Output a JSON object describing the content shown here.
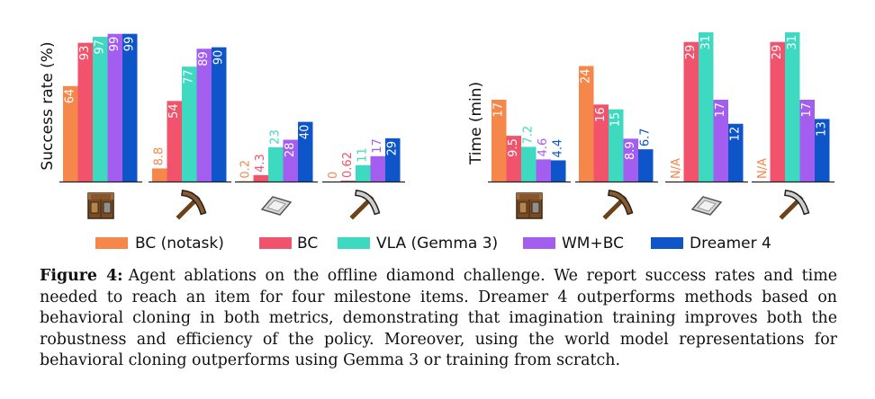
{
  "chart_data": {
    "type": "bar",
    "legend": {
      "placement": "bottom",
      "entries": [
        "BC (notask)",
        "BC",
        "VLA (Gemma 3)",
        "WM+BC",
        "Dreamer 4"
      ]
    },
    "colors": [
      "#f5874b",
      "#f0536b",
      "#3dd9c1",
      "#a35ef0",
      "#0d55c9"
    ],
    "panels": [
      {
        "ylabel": "Success rate (%)",
        "ylim": [
          0,
          100
        ],
        "categories": [
          "crafting-table",
          "wooden-pickaxe",
          "iron-ingot",
          "iron-pickaxe"
        ],
        "series": [
          {
            "name": "BC (notask)",
            "values": [
              64,
              8.8,
              0.2,
              0
            ],
            "labels": [
              "64",
              "8.8",
              "0.2",
              "0"
            ]
          },
          {
            "name": "BC",
            "values": [
              93,
              54,
              4.3,
              0.62
            ],
            "labels": [
              "93",
              "54",
              "4.3",
              "0.62"
            ]
          },
          {
            "name": "VLA (Gemma 3)",
            "values": [
              97,
              77,
              23,
              11
            ],
            "labels": [
              "97",
              "77",
              "23",
              "11"
            ]
          },
          {
            "name": "WM+BC",
            "values": [
              99,
              89,
              28,
              17
            ],
            "labels": [
              "99",
              "89",
              "28",
              "17"
            ]
          },
          {
            "name": "Dreamer 4",
            "values": [
              99,
              90,
              40,
              29
            ],
            "labels": [
              "99",
              "90",
              "40",
              "29"
            ]
          }
        ]
      },
      {
        "ylabel": "Time (min)",
        "ylim": [
          0,
          31
        ],
        "categories": [
          "crafting-table",
          "wooden-pickaxe",
          "iron-ingot",
          "iron-pickaxe"
        ],
        "series": [
          {
            "name": "BC (notask)",
            "values": [
              17,
              24,
              null,
              null
            ],
            "labels": [
              "17",
              "24",
              "N/A",
              "N/A"
            ]
          },
          {
            "name": "BC",
            "values": [
              9.5,
              16,
              29,
              29
            ],
            "labels": [
              "9.5",
              "16",
              "29",
              "29"
            ]
          },
          {
            "name": "VLA (Gemma 3)",
            "values": [
              7.2,
              15,
              31,
              31
            ],
            "labels": [
              "7.2",
              "15",
              "31",
              "31"
            ]
          },
          {
            "name": "WM+BC",
            "values": [
              4.6,
              8.9,
              17,
              17
            ],
            "labels": [
              "4.6",
              "8.9",
              "17",
              "17"
            ]
          },
          {
            "name": "Dreamer 4",
            "values": [
              4.4,
              6.7,
              12,
              13
            ],
            "labels": [
              "4.4",
              "6.7",
              "12",
              "13"
            ]
          }
        ]
      }
    ]
  },
  "caption": {
    "label": "Figure 4:",
    "text": "Agent ablations on the offline diamond challenge. We report success rates and time needed to reach an item for four milestone items. Dreamer 4 outperforms methods based on behavioral cloning in both metrics, demonstrating that imagination training improves both the robustness and efficiency of the policy. Moreover, using the world model representations for behavioral cloning outperforms using Gemma 3 or training from scratch."
  }
}
